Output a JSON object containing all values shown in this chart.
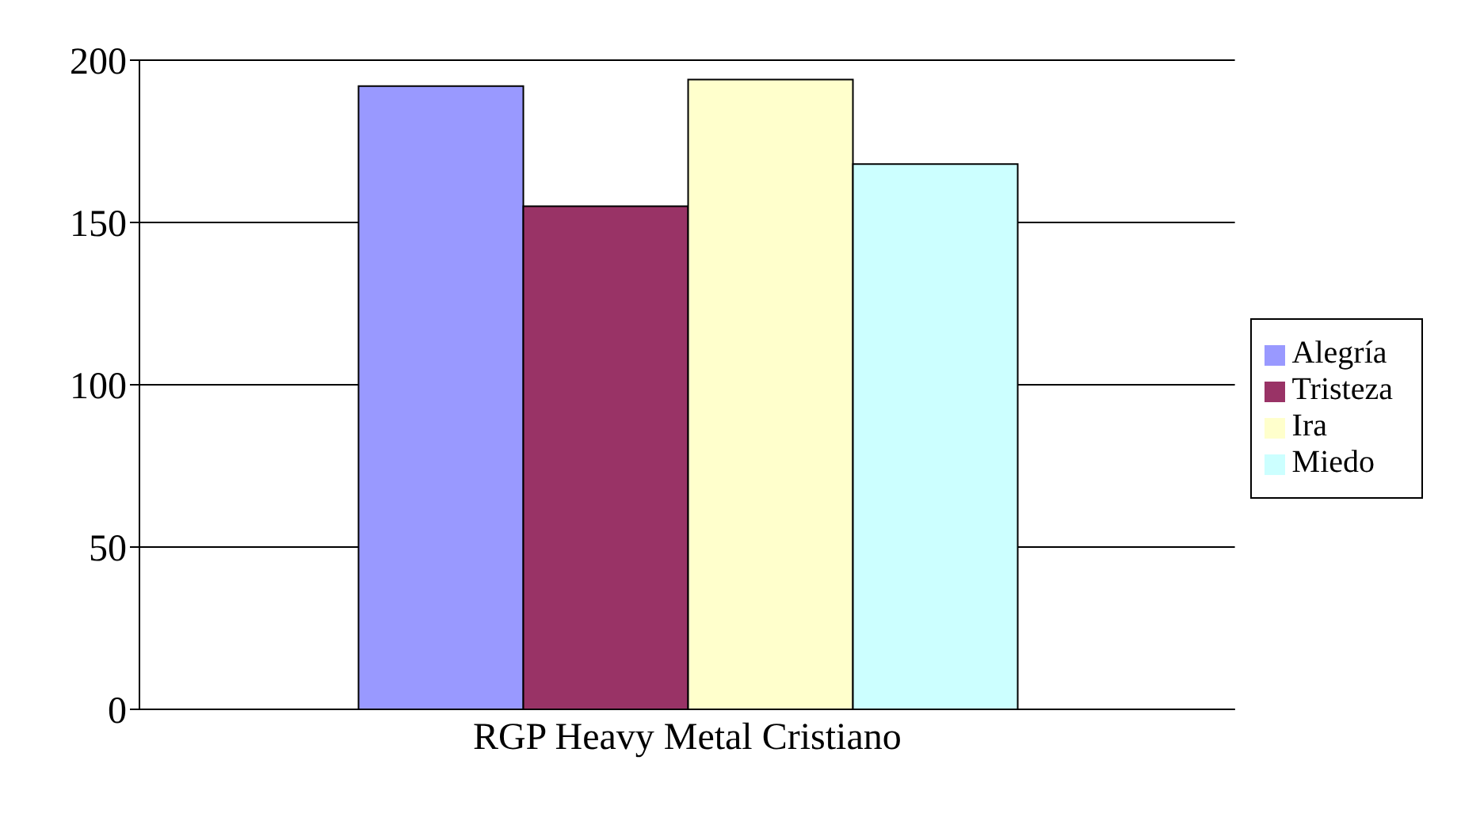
{
  "chart_data": {
    "type": "bar",
    "categories": [
      "RGP Heavy Metal Cristiano"
    ],
    "series": [
      {
        "name": "Alegría",
        "color": "#9999ff",
        "values": [
          192
        ]
      },
      {
        "name": "Tristeza",
        "color": "#993366",
        "values": [
          155
        ]
      },
      {
        "name": "Ira",
        "color": "#ffffcc",
        "values": [
          194
        ]
      },
      {
        "name": "Miedo",
        "color": "#ccffff",
        "values": [
          168
        ]
      }
    ],
    "ylim": [
      0,
      200
    ],
    "yticks": [
      0,
      50,
      100,
      150,
      200
    ],
    "grid": "y",
    "legend": "right"
  }
}
